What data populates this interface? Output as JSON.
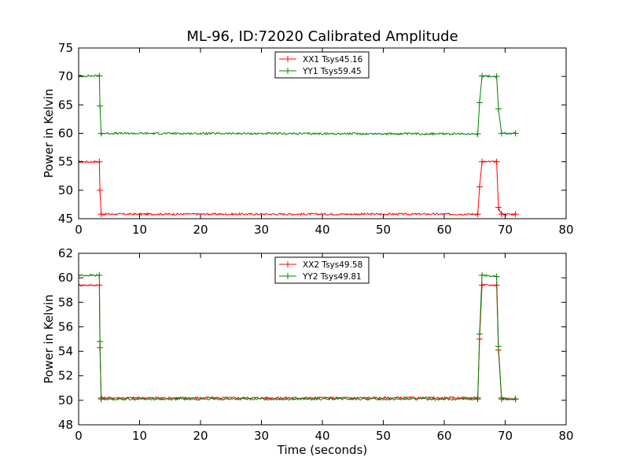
{
  "chart_data": [
    {
      "type": "line",
      "title": "ML-96, ID:72020 Calibrated Amplitude",
      "xlabel": "",
      "ylabel": "Power in Kelvin",
      "xlim": [
        0,
        80
      ],
      "ylim": [
        45,
        75
      ],
      "xticks": [
        0,
        10,
        20,
        30,
        40,
        50,
        60,
        70,
        80
      ],
      "yticks": [
        45,
        50,
        55,
        60,
        65,
        70,
        75
      ],
      "grid": false,
      "legend": "top-center",
      "series": [
        {
          "name": "XX1 Tsys45.16",
          "color": "#ff0000",
          "marker": "+",
          "x": [
            0,
            3.4,
            3.5,
            3.7,
            65.5,
            65.8,
            66.2,
            68.6,
            68.9,
            69.4,
            71.7
          ],
          "y": [
            55.0,
            55.0,
            50.0,
            45.8,
            45.8,
            50.6,
            55.0,
            55.0,
            47.0,
            45.8,
            45.8
          ]
        },
        {
          "name": "YY1 Tsys59.45",
          "color": "#008000",
          "marker": "+",
          "x": [
            0,
            3.4,
            3.5,
            3.7,
            65.5,
            65.8,
            66.2,
            68.6,
            68.9,
            69.4,
            71.7
          ],
          "y": [
            70.1,
            70.1,
            64.8,
            60.0,
            59.9,
            65.4,
            70.1,
            70.0,
            64.3,
            60.0,
            60.0
          ]
        }
      ]
    },
    {
      "type": "line",
      "title": "",
      "xlabel": "Time (seconds)",
      "ylabel": "Power in Kelvin",
      "xlim": [
        0,
        80
      ],
      "ylim": [
        48,
        62
      ],
      "xticks": [
        0,
        10,
        20,
        30,
        40,
        50,
        60,
        70,
        80
      ],
      "yticks": [
        48,
        50,
        52,
        54,
        56,
        58,
        60,
        62
      ],
      "grid": false,
      "legend": "top-center",
      "series": [
        {
          "name": "XX2 Tsys49.58",
          "color": "#ff0000",
          "marker": "+",
          "x": [
            0,
            3.4,
            3.5,
            3.7,
            65.5,
            65.8,
            66.2,
            68.6,
            68.9,
            69.4,
            71.7
          ],
          "y": [
            59.4,
            59.4,
            54.3,
            50.2,
            50.2,
            55.0,
            59.4,
            59.4,
            54.1,
            50.2,
            50.1
          ]
        },
        {
          "name": "YY2 Tsys49.81",
          "color": "#008000",
          "marker": "+",
          "x": [
            0,
            3.4,
            3.5,
            3.7,
            65.5,
            65.8,
            66.2,
            68.6,
            68.9,
            69.4,
            71.7
          ],
          "y": [
            60.2,
            60.2,
            54.8,
            50.1,
            50.1,
            55.4,
            60.2,
            60.1,
            54.4,
            50.1,
            50.1
          ]
        }
      ]
    }
  ]
}
